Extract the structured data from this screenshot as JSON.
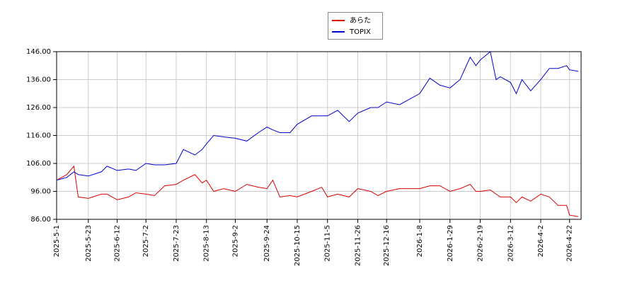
{
  "chart_data": {
    "type": "line",
    "x": [
      "2025-05-01",
      "2025-05-08",
      "2025-05-13",
      "2025-05-16",
      "2025-05-23",
      "2025-06-01",
      "2025-06-05",
      "2025-06-12",
      "2025-06-20",
      "2025-06-25",
      "2025-07-02",
      "2025-07-08",
      "2025-07-15",
      "2025-07-23",
      "2025-07-28",
      "2025-08-05",
      "2025-08-10",
      "2025-08-13",
      "2025-08-18",
      "2025-08-25",
      "2025-09-02",
      "2025-09-10",
      "2025-09-18",
      "2025-09-24",
      "2025-09-28",
      "2025-10-03",
      "2025-10-10",
      "2025-10-15",
      "2025-10-25",
      "2025-11-01",
      "2025-11-05",
      "2025-11-12",
      "2025-11-20",
      "2025-11-26",
      "2025-12-05",
      "2025-12-10",
      "2025-12-16",
      "2025-12-25",
      "2026-01-08",
      "2026-01-15",
      "2026-01-22",
      "2026-01-29",
      "2026-02-05",
      "2026-02-12",
      "2026-02-16",
      "2026-02-19",
      "2026-02-26",
      "2026-03-02",
      "2026-03-05",
      "2026-03-12",
      "2026-03-16",
      "2026-03-20",
      "2026-03-26",
      "2026-04-02",
      "2026-04-08",
      "2026-04-14",
      "2026-04-20",
      "2026-04-22",
      "2026-04-28"
    ],
    "series": [
      {
        "name": "あらた",
        "color": "#dd0000",
        "values": [
          100,
          102,
          105,
          94,
          93.5,
          95,
          95,
          93,
          94,
          95.5,
          95,
          94.5,
          98,
          98.5,
          100,
          102,
          99,
          100,
          96,
          97,
          96,
          98.5,
          97.5,
          97,
          100,
          94,
          94.5,
          94,
          96,
          97.5,
          94,
          95,
          94,
          97,
          96,
          94.5,
          96,
          97,
          97,
          98,
          98,
          96,
          97,
          98.5,
          96,
          96,
          96.5,
          95,
          94,
          94,
          92,
          94,
          92.5,
          95,
          94,
          91,
          91,
          87.5,
          87
        ]
      },
      {
        "name": "TOPIX",
        "color": "#0000cc",
        "values": [
          100,
          101,
          103,
          102,
          101.5,
          103,
          105,
          103.5,
          104,
          103.5,
          106,
          105.5,
          105.5,
          106,
          111,
          109,
          111,
          113,
          116,
          115.5,
          115,
          114,
          117,
          119,
          118,
          117,
          117,
          120,
          123,
          123,
          123,
          125,
          121,
          124,
          126,
          126,
          128,
          127,
          131,
          136.5,
          134,
          133,
          136,
          144,
          141,
          143,
          146,
          136,
          137,
          135,
          131,
          136,
          132,
          136,
          140,
          140,
          141,
          139.5,
          139
        ]
      }
    ],
    "xlim": [
      "2025-05-01",
      "2026-04-30"
    ],
    "xticks": [
      {
        "value": "2025-05-01",
        "label": "2025-5-1"
      },
      {
        "value": "2025-05-23",
        "label": "2025-5-23"
      },
      {
        "value": "2025-06-12",
        "label": "2025-6-12"
      },
      {
        "value": "2025-07-02",
        "label": "2025-7-2"
      },
      {
        "value": "2025-07-23",
        "label": "2025-7-23"
      },
      {
        "value": "2025-08-13",
        "label": "2025-8-13"
      },
      {
        "value": "2025-09-02",
        "label": "2025-9-2"
      },
      {
        "value": "2025-09-24",
        "label": "2025-9-24"
      },
      {
        "value": "2025-10-15",
        "label": "2025-10-15"
      },
      {
        "value": "2025-11-05",
        "label": "2025-11-5"
      },
      {
        "value": "2025-11-26",
        "label": "2025-11-26"
      },
      {
        "value": "2025-12-16",
        "label": "2025-12-16"
      },
      {
        "value": "2026-01-08",
        "label": "2026-1-8"
      },
      {
        "value": "2026-01-29",
        "label": "2026-1-29"
      },
      {
        "value": "2026-02-19",
        "label": "2026-2-19"
      },
      {
        "value": "2026-03-12",
        "label": "2026-3-12"
      },
      {
        "value": "2026-04-02",
        "label": "2026-4-2"
      },
      {
        "value": "2026-04-22",
        "label": "2026-4-22"
      }
    ],
    "ylim": [
      86,
      146
    ],
    "yticks": [
      {
        "value": 86,
        "label": "86.00"
      },
      {
        "value": 96,
        "label": "96.00"
      },
      {
        "value": 106,
        "label": "106.00"
      },
      {
        "value": 116,
        "label": "116.00"
      },
      {
        "value": 126,
        "label": "126.00"
      },
      {
        "value": 136,
        "label": "136.00"
      },
      {
        "value": 146,
        "label": "146.00"
      }
    ],
    "grid": true,
    "legend": "top"
  }
}
